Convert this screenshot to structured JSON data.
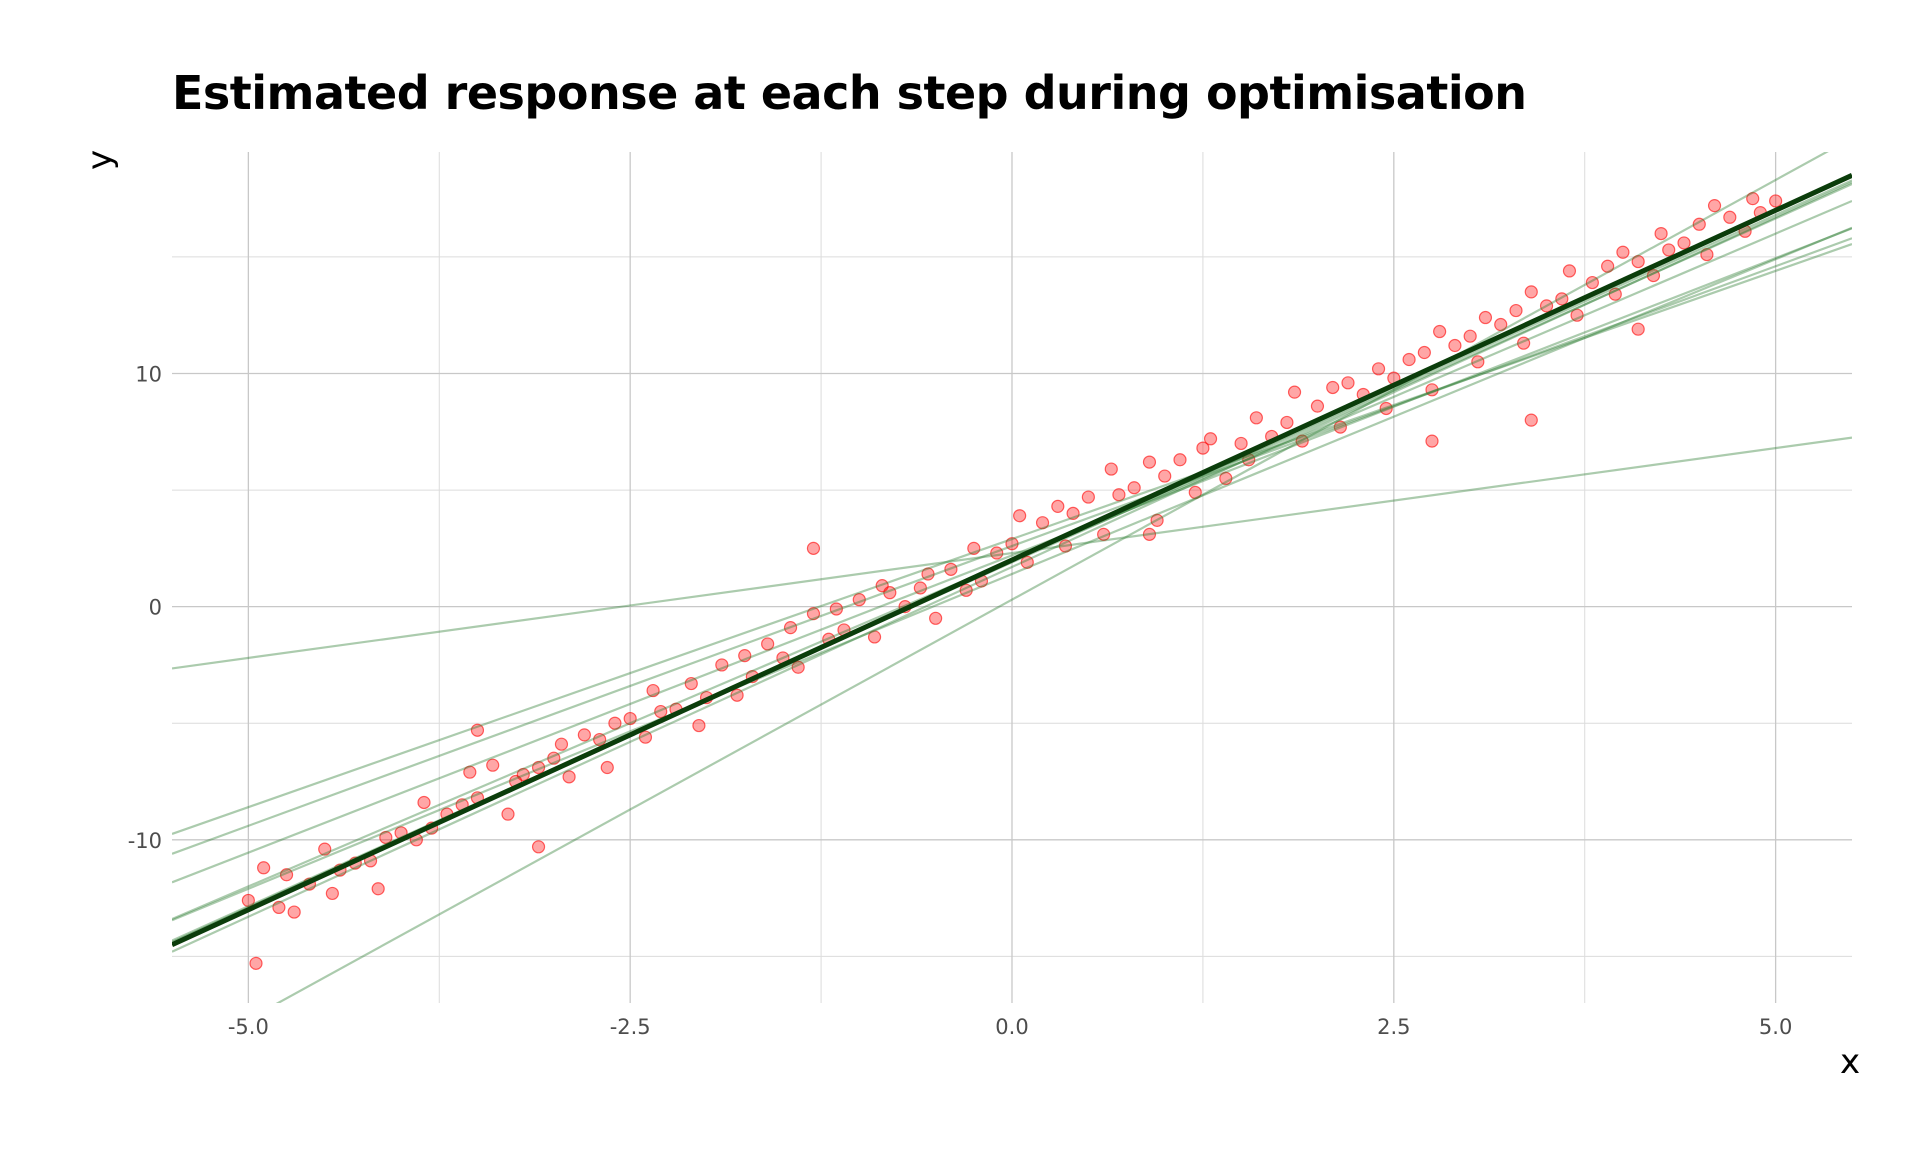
{
  "chart_data": {
    "type": "scatter",
    "title": "Estimated response at each step during optimisation",
    "xlabel": "x",
    "ylabel": "y",
    "xlim": [
      -5.5,
      5.5
    ],
    "ylim": [
      -17,
      19.5
    ],
    "x_ticks": [
      -5.0,
      -2.5,
      0.0,
      2.5,
      5.0
    ],
    "x_tick_labels": [
      "-5.0",
      "-2.5",
      "0.0",
      "2.5",
      "5.0"
    ],
    "y_ticks": [
      -10,
      0,
      10
    ],
    "y_tick_labels": [
      "-10",
      "0",
      "10"
    ],
    "grid": true,
    "legend": "none",
    "point_color": "#ff0000",
    "line_color": "#2e7d32",
    "final_line_color": "#0b3d0b",
    "series": [
      {
        "type": "scatter",
        "x": [
          -5.0,
          -4.9,
          -4.8,
          -4.75,
          -4.7,
          -4.6,
          -4.5,
          -4.45,
          -4.4,
          -4.3,
          -4.2,
          -4.15,
          -4.1,
          -4.0,
          -3.9,
          -3.85,
          -3.8,
          -3.7,
          -3.6,
          -3.55,
          -3.5,
          -3.4,
          -3.3,
          -3.25,
          -3.2,
          -3.1,
          -3.0,
          -2.95,
          -2.9,
          -2.8,
          -2.7,
          -2.65,
          -2.6,
          -2.5,
          -2.4,
          -2.35,
          -2.3,
          -2.2,
          -2.1,
          -2.05,
          -2.0,
          -1.9,
          -1.8,
          -1.75,
          -1.7,
          -1.6,
          -1.5,
          -1.45,
          -1.4,
          -1.3,
          -1.2,
          -1.15,
          -1.1,
          -1.0,
          -0.9,
          -0.85,
          -0.8,
          -0.7,
          -0.6,
          -0.55,
          -0.5,
          -0.4,
          -0.3,
          -0.25,
          -0.2,
          -0.1,
          0.0,
          0.05,
          0.1,
          0.2,
          0.3,
          0.35,
          0.4,
          0.5,
          0.6,
          0.65,
          0.7,
          0.8,
          0.9,
          0.95,
          1.0,
          1.1,
          1.2,
          1.25,
          1.3,
          1.4,
          1.5,
          1.55,
          1.6,
          1.7,
          1.8,
          1.85,
          1.9,
          2.0,
          2.1,
          2.15,
          2.2,
          2.3,
          2.4,
          2.45,
          2.5,
          2.6,
          2.7,
          2.75,
          2.8,
          2.9,
          3.0,
          3.05,
          3.1,
          3.2,
          3.3,
          3.35,
          3.4,
          3.5,
          3.6,
          3.65,
          3.7,
          3.8,
          3.9,
          3.95,
          4.0,
          4.1,
          4.2,
          4.25,
          4.3,
          4.4,
          4.5,
          4.55,
          4.6,
          4.7,
          4.8,
          4.85,
          4.9,
          5.0,
          -1.3,
          -3.5,
          -4.95,
          -3.1,
          2.75,
          3.4,
          4.1,
          0.9
        ],
        "y": [
          -12.6,
          -11.2,
          -12.9,
          -11.5,
          -13.1,
          -11.9,
          -10.4,
          -12.3,
          -11.3,
          -11.0,
          -10.9,
          -12.1,
          -9.9,
          -9.7,
          -10.0,
          -8.4,
          -9.5,
          -8.9,
          -8.5,
          -7.1,
          -8.2,
          -6.8,
          -8.9,
          -7.5,
          -7.2,
          -6.9,
          -6.5,
          -5.9,
          -7.3,
          -5.5,
          -5.7,
          -6.9,
          -5.0,
          -4.8,
          -5.6,
          -3.6,
          -4.5,
          -4.4,
          -3.3,
          -5.1,
          -3.9,
          -2.5,
          -3.8,
          -2.1,
          -3.0,
          -1.6,
          -2.2,
          -0.9,
          -2.6,
          -0.3,
          -1.4,
          -0.1,
          -1.0,
          0.3,
          -1.3,
          0.9,
          0.6,
          0.0,
          0.8,
          1.4,
          -0.5,
          1.6,
          0.7,
          2.5,
          1.1,
          2.3,
          2.7,
          3.9,
          1.9,
          3.6,
          4.3,
          2.6,
          4.0,
          4.7,
          3.1,
          5.9,
          4.8,
          5.1,
          6.2,
          3.7,
          5.6,
          6.3,
          4.9,
          6.8,
          7.2,
          5.5,
          7.0,
          6.3,
          8.1,
          7.3,
          7.9,
          9.2,
          7.1,
          8.6,
          9.4,
          7.7,
          9.6,
          9.1,
          10.2,
          8.5,
          9.8,
          10.6,
          10.9,
          9.3,
          11.8,
          11.2,
          11.6,
          10.5,
          12.4,
          12.1,
          12.7,
          11.3,
          13.5,
          12.9,
          13.2,
          14.4,
          12.5,
          13.9,
          14.6,
          13.4,
          15.2,
          14.8,
          14.2,
          16.0,
          15.3,
          15.6,
          16.4,
          15.1,
          17.2,
          16.7,
          16.1,
          17.5,
          16.9,
          17.4,
          2.5,
          -5.3,
          -15.3,
          -10.3,
          7.1,
          8.0,
          11.9,
          3.1
        ]
      }
    ],
    "lines": [
      {
        "step": 1,
        "intercept": 2.3,
        "slope": 0.9
      },
      {
        "step": 2,
        "intercept": 0.3,
        "slope": 3.6
      },
      {
        "step": 3,
        "intercept": 2.6,
        "slope": 2.4
      },
      {
        "step": 4,
        "intercept": 2.2,
        "slope": 2.55
      },
      {
        "step": 5,
        "intercept": 2.9,
        "slope": 2.3
      },
      {
        "step": 6,
        "intercept": 1.4,
        "slope": 2.7
      },
      {
        "step": 7,
        "intercept": 2.0,
        "slope": 2.8
      },
      {
        "step": 8,
        "intercept": 1.7,
        "slope": 3.0
      },
      {
        "step": 9,
        "intercept": 1.9,
        "slope": 2.95
      },
      {
        "step": 10,
        "intercept": 1.95,
        "slope": 2.97
      },
      {
        "step": 11,
        "intercept": 2.0,
        "slope": 3.0
      }
    ]
  }
}
